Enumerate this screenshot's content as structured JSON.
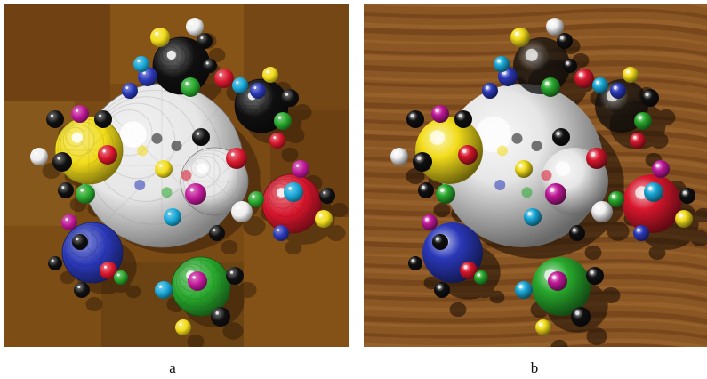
{
  "panels": [
    {
      "id": "a",
      "caption": "a",
      "style": "flat-shaded ray tracing"
    },
    {
      "id": "b",
      "caption": "b",
      "style": "distributed ray tracing"
    }
  ],
  "colors": {
    "floor_a": "#7a4a14",
    "floor_b": "#8a5624",
    "yellow": "#f2dc1a",
    "red": "#d8162c",
    "blue": "#2a38b8",
    "green": "#28a82c",
    "magenta": "#c01898",
    "cyan": "#18a8d8",
    "white": "#f0f0f0",
    "black": "#101010",
    "silver": "#e6e6e6"
  }
}
